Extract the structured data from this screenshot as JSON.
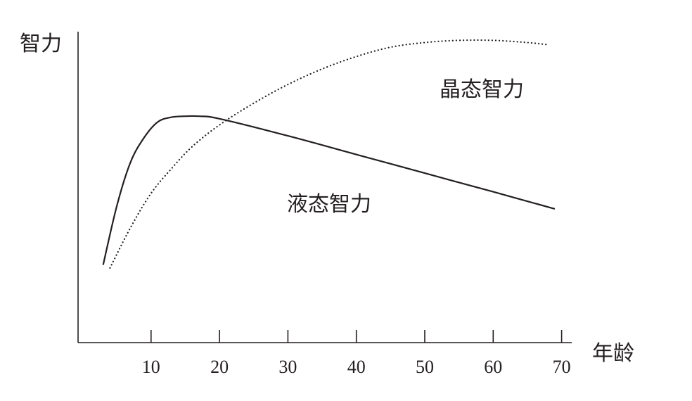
{
  "chart_data": {
    "type": "line",
    "xlabel": "年龄",
    "ylabel": "智力",
    "xlim": [
      0,
      70
    ],
    "ylim": [
      0,
      100
    ],
    "x_ticks": [
      10,
      20,
      30,
      40,
      50,
      60,
      70
    ],
    "grid": false,
    "legend": "inline labels",
    "series": [
      {
        "name": "液态智力",
        "style": "solid",
        "color": "#231f20",
        "x": [
          3,
          5,
          7,
          9,
          11,
          13,
          15,
          17,
          20,
          30,
          40,
          50,
          60,
          69
        ],
        "y": [
          25,
          44,
          58,
          66,
          71,
          72.5,
          72.8,
          72.8,
          72,
          66.5,
          60.5,
          54.5,
          48.5,
          43
        ]
      },
      {
        "name": "晶态智力",
        "style": "dotted",
        "color": "#231f20",
        "x": [
          4,
          7,
          10,
          13,
          16,
          20,
          25,
          30,
          35,
          40,
          45,
          50,
          55,
          60,
          65,
          68
        ],
        "y": [
          24,
          37,
          48,
          56,
          63,
          70,
          77,
          83,
          88,
          92,
          95,
          96.5,
          97.2,
          97.2,
          96.5,
          95.8
        ]
      }
    ]
  }
}
